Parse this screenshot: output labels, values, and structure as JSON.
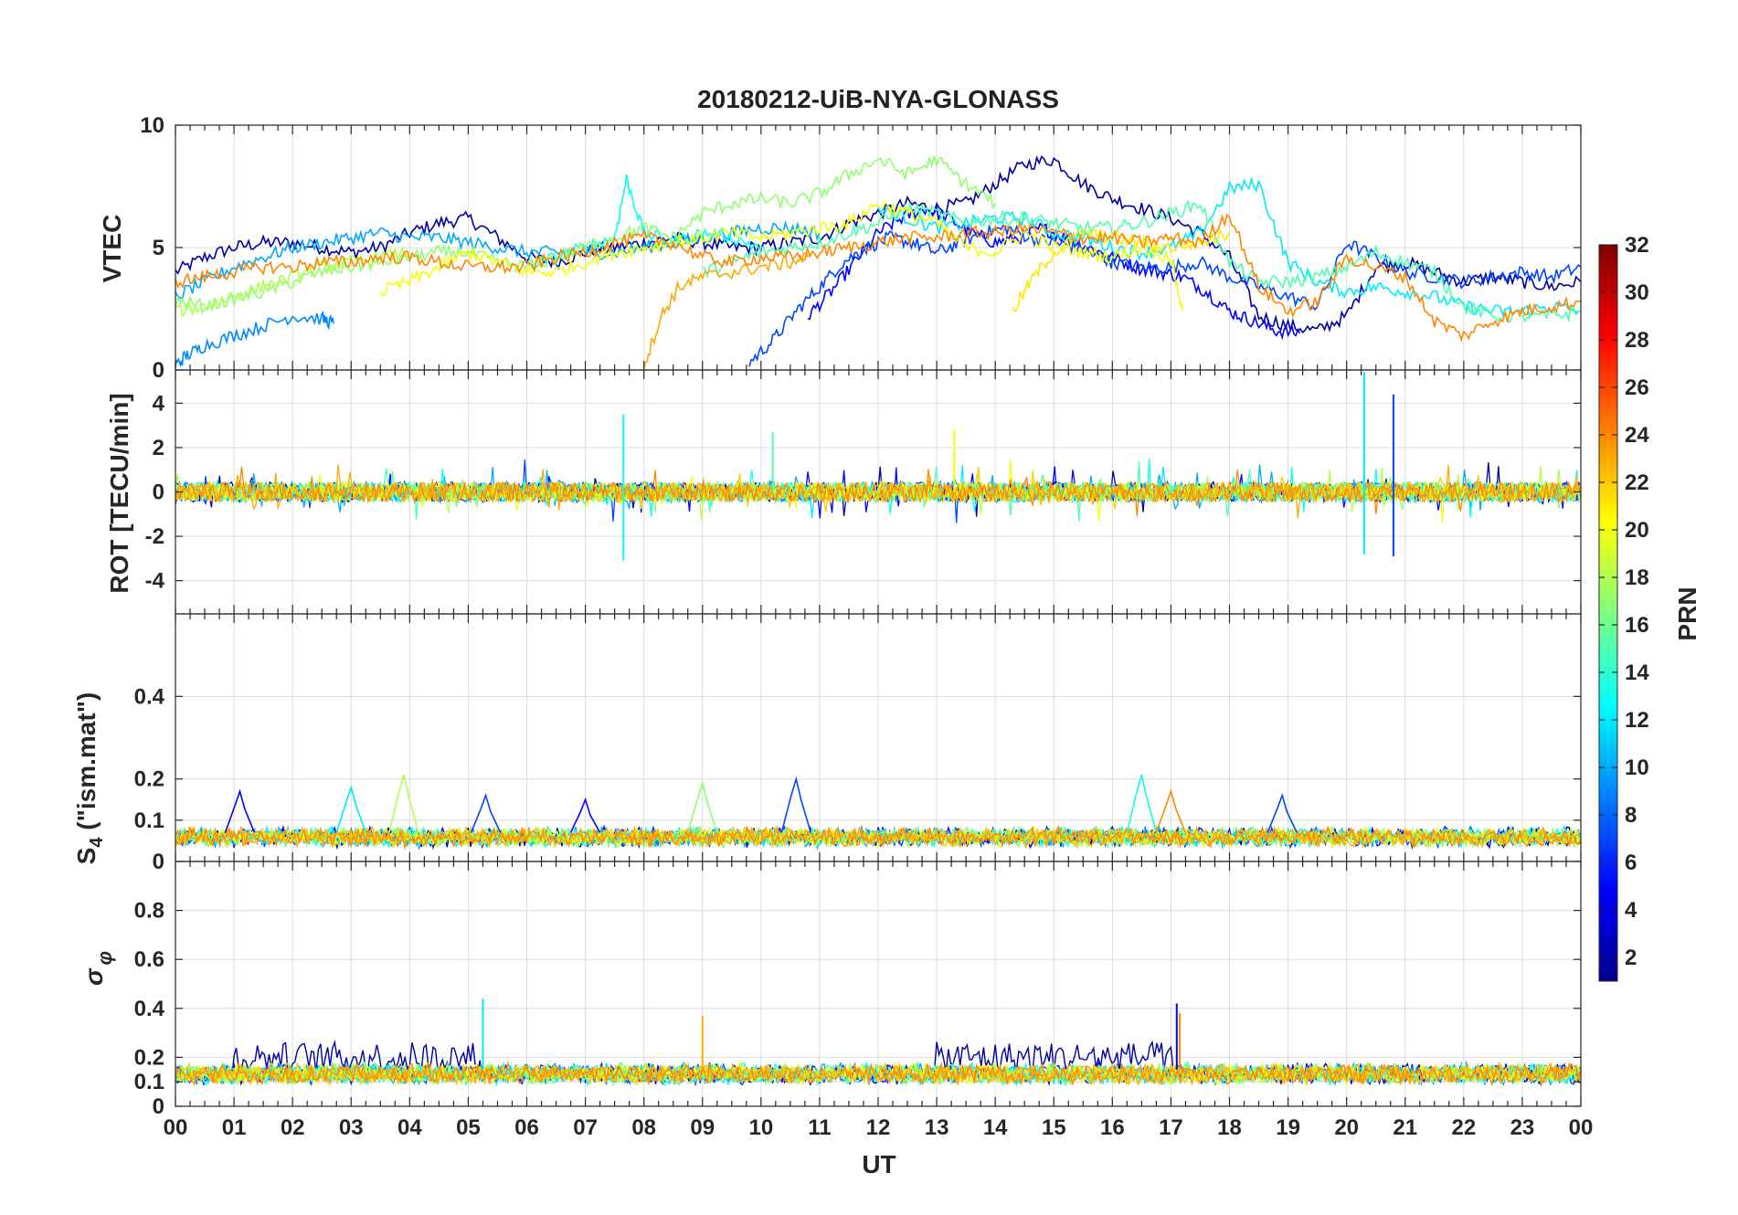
{
  "figure": {
    "title": "20180212-UiB-NYA-GLONASS",
    "xlabel": "UT",
    "x_tick_labels": [
      "00",
      "01",
      "02",
      "03",
      "04",
      "05",
      "06",
      "07",
      "08",
      "09",
      "10",
      "11",
      "12",
      "13",
      "14",
      "15",
      "16",
      "17",
      "18",
      "19",
      "20",
      "21",
      "22",
      "23",
      "00"
    ]
  },
  "colorbar": {
    "label": "PRN",
    "range": [
      1,
      32
    ],
    "tick_labels": [
      "2",
      "4",
      "6",
      "8",
      "10",
      "12",
      "14",
      "16",
      "18",
      "20",
      "22",
      "24",
      "26",
      "28",
      "30",
      "32"
    ],
    "colormap": "jet"
  },
  "chart_data": [
    {
      "type": "line",
      "panel": "vtec",
      "ylabel": "VTEC",
      "xlim": [
        0,
        24
      ],
      "ylim": [
        0,
        10
      ],
      "y_tick_labels": [
        "0",
        "5",
        "10"
      ],
      "series": [
        {
          "prn": 2,
          "x": [
            0,
            0.5,
            1,
            1.5,
            2,
            2.5,
            3,
            3.5,
            4,
            4.5,
            5,
            5.5,
            6,
            6.5,
            7,
            7.5,
            8,
            8.5,
            9,
            9.5,
            10,
            10.5,
            11,
            11.5,
            12,
            12.5,
            13,
            13.5,
            14,
            14.5,
            15,
            15.5,
            16,
            16.5,
            17,
            17.5,
            18,
            18.5,
            19,
            19.5,
            20,
            20.5,
            21,
            21.5,
            22,
            22.5,
            23,
            23.5,
            24
          ],
          "y": [
            4,
            4.6,
            5,
            5.2,
            5.2,
            5,
            4.8,
            5,
            5.6,
            6,
            6.2,
            5.4,
            4.6,
            4.4,
            4.8,
            5,
            5.2,
            5.4,
            5.2,
            5,
            5,
            5.2,
            5.4,
            6,
            6.4,
            6.8,
            6.6,
            6.8,
            7.6,
            8.4,
            8.6,
            7.6,
            7,
            6.6,
            6.2,
            5.6,
            4.6,
            2.2,
            1.8,
            1.6,
            2.2,
            4.2,
            4.4,
            4,
            3.6,
            3.8,
            3.6,
            3.4,
            3.6
          ]
        },
        {
          "prn": 5,
          "x": [
            10.8,
            11.2,
            11.6,
            12,
            12.4,
            12.8,
            13.2,
            13.6,
            14,
            14.4,
            14.8,
            15.2,
            15.6,
            16,
            16.4,
            16.8,
            17.2,
            17.6,
            18,
            18.4,
            18.8,
            19.2
          ],
          "y": [
            2.2,
            3.2,
            4.4,
            5.6,
            6.2,
            6.6,
            6.2,
            5.6,
            5.2,
            5.4,
            5.8,
            5.4,
            5,
            4.6,
            4.2,
            4,
            3.8,
            3.2,
            2.4,
            2,
            1.6,
            1.5
          ]
        },
        {
          "prn": 7,
          "x": [
            9.8,
            10.2,
            10.6,
            11,
            11.4,
            11.8,
            12.2,
            12.6,
            13,
            13.4,
            13.8,
            14.2,
            14.6,
            15,
            15.4,
            15.8,
            16,
            16.5,
            17,
            17.5,
            18,
            18.5,
            19,
            19.5,
            20,
            20.5,
            21,
            21.5,
            22,
            22.5,
            23,
            23.5,
            24
          ],
          "y": [
            0.3,
            1.2,
            2.4,
            3.4,
            4.4,
            5,
            5.4,
            5.2,
            4.8,
            5.2,
            5.6,
            5.8,
            5.4,
            5.2,
            5,
            4.6,
            4.4,
            4.2,
            4.2,
            4.4,
            3.8,
            3.4,
            3,
            2.6,
            5.2,
            4.6,
            4,
            3.8,
            3.6,
            3.8,
            4,
            3.8,
            4.2
          ]
        },
        {
          "prn": 9,
          "x": [
            0,
            0.2,
            0.5,
            1,
            1.5,
            2,
            2.5,
            2.7
          ],
          "y": [
            0.2,
            0.6,
            1,
            1.4,
            1.8,
            2.2,
            2.1,
            1.9
          ]
        },
        {
          "prn": 10,
          "x": [
            0,
            0.5,
            1,
            1.5,
            2,
            2.5,
            3,
            3.5,
            4,
            4.5,
            5,
            5.5,
            6,
            6.5,
            7,
            7.5,
            8,
            8.5,
            9,
            9.5,
            10,
            10.5,
            11
          ],
          "y": [
            3,
            3.6,
            4.2,
            4.6,
            5,
            5.2,
            5.4,
            5.6,
            5.4,
            5.4,
            5.2,
            5,
            4.8,
            4.8,
            4.8,
            4.8,
            5,
            5.2,
            5.4,
            5.6,
            5.8,
            5.8,
            5.6
          ]
        },
        {
          "prn": 12,
          "x": [
            12,
            12.5,
            13,
            13.5,
            14,
            14.5,
            15,
            15.5,
            16,
            16.5,
            17,
            17.5,
            18,
            18.5,
            19,
            19.5,
            20,
            20.5,
            21,
            21.5,
            22,
            22.5,
            23,
            23.5,
            24
          ],
          "y": [
            6.6,
            6.2,
            5.8,
            6,
            6.2,
            6.2,
            5.6,
            5.4,
            5,
            4.8,
            5,
            5.6,
            7.4,
            7.6,
            4.4,
            3.6,
            3.2,
            3.4,
            3.2,
            3,
            2.6,
            2.4,
            2.4,
            2.6,
            2.4
          ]
        },
        {
          "prn": 13,
          "x": [
            6,
            6.5,
            7,
            7.5,
            7.7,
            8,
            8.5,
            9,
            9.5,
            10
          ],
          "y": [
            4.2,
            4.6,
            5,
            5.4,
            7.8,
            5.6,
            5.2,
            5.6,
            5.4,
            5
          ]
        },
        {
          "prn": 15,
          "x": [
            9,
            9.5,
            10,
            10.5,
            11,
            11.5,
            12,
            12.5,
            13,
            13.5,
            14,
            14.5,
            15,
            15.5,
            16,
            16.5,
            17,
            17.5,
            18,
            18.5,
            19,
            19.5,
            20,
            20.5,
            21,
            21.5,
            22,
            22.5,
            23,
            23.5,
            24
          ],
          "y": [
            4,
            4.4,
            4.8,
            5,
            5.2,
            5.6,
            6,
            6.6,
            6.4,
            6,
            6.2,
            6.2,
            6,
            5.8,
            5.8,
            6,
            6.4,
            6.8,
            4.4,
            3.6,
            3.6,
            3.8,
            4.2,
            4.8,
            4.4,
            4,
            2.6,
            2.2,
            2.2,
            2.2,
            2.4
          ]
        },
        {
          "prn": 17,
          "x": [
            0,
            0.5,
            1,
            1.5,
            2,
            2.5,
            3,
            3.5,
            4,
            4.5,
            5,
            5.5,
            6,
            6.5,
            7,
            7.5,
            8,
            8.5,
            9,
            9.5,
            10,
            10.5,
            11,
            11.5,
            12,
            12.5,
            13,
            13.5,
            14
          ],
          "y": [
            2.8,
            2.6,
            2.9,
            3.2,
            3.6,
            4,
            4.2,
            4.4,
            4.6,
            4.8,
            4.8,
            4.4,
            4.2,
            4.6,
            5,
            5.4,
            5.8,
            5.4,
            6.4,
            6.8,
            7,
            6.8,
            7.2,
            8,
            8.6,
            8,
            8.6,
            7.6,
            6.8
          ]
        },
        {
          "prn": 18,
          "x": [
            0,
            0.5,
            1,
            1.5,
            2,
            2.5,
            3,
            3.5,
            4
          ],
          "y": [
            2.4,
            2.6,
            3,
            3.4,
            3.8,
            4.2,
            4.4,
            4.6,
            4.8
          ]
        },
        {
          "prn": 20,
          "x": [
            3.5,
            4,
            4.5,
            5,
            5.5,
            6,
            6.5,
            7,
            7.5,
            8,
            8.5,
            9,
            9.5,
            10,
            10.5,
            11,
            11.5,
            12,
            12.5,
            13,
            13.5,
            14,
            14.5,
            15,
            15.5,
            16,
            16.5,
            17,
            17.2
          ],
          "y": [
            3.2,
            3.6,
            4.2,
            4.8,
            4.4,
            4,
            4,
            4.4,
            4.8,
            5,
            5.2,
            5.4,
            5.6,
            5.4,
            5.6,
            5.8,
            6,
            6.8,
            6.4,
            6,
            5,
            4.8,
            5.6,
            5,
            4.8,
            4.6,
            5,
            4.6,
            2.4
          ]
        },
        {
          "prn": 21,
          "x": [
            14.3,
            14.6,
            15,
            15.5,
            16,
            16.5,
            17,
            17.5,
            18
          ],
          "y": [
            2.4,
            3.6,
            4.8,
            5.6,
            5.4,
            5.2,
            5,
            5.2,
            5.6
          ]
        },
        {
          "prn": 23,
          "x": [
            8,
            8.3,
            8.6,
            9,
            9.5,
            10,
            10.5,
            10.8
          ],
          "y": [
            0.2,
            2.2,
            3.4,
            3.8,
            4,
            4.2,
            4.4,
            4.6
          ]
        },
        {
          "prn": 24,
          "x": [
            0,
            0.5,
            1,
            1.5,
            2,
            2.5,
            3,
            3.5,
            4,
            4.5,
            5,
            5.5,
            6,
            6.5,
            7,
            7.5,
            8,
            8.5,
            9,
            9.5,
            10,
            10.5,
            11,
            11.5,
            12,
            12.5,
            13,
            13.5,
            14,
            14.5,
            15,
            15.5,
            16,
            16.5,
            17,
            17.5,
            18,
            18.5,
            19,
            19.5,
            20,
            20.5,
            21,
            21.5,
            22,
            22.5,
            23,
            23.5,
            24
          ],
          "y": [
            3.6,
            3.8,
            4,
            4.2,
            4.2,
            4.4,
            4.4,
            4.6,
            4.6,
            4.4,
            4.2,
            4.2,
            4.2,
            4.6,
            4.8,
            5.2,
            5.4,
            5.2,
            4.6,
            4.4,
            4.6,
            4.6,
            4.8,
            5,
            5.2,
            5.4,
            5.4,
            5.6,
            5.6,
            5.8,
            5.6,
            5.4,
            5.4,
            5.2,
            5.4,
            5.2,
            6.4,
            3.4,
            2.4,
            2.8,
            4.6,
            4.2,
            3.8,
            2,
            1.4,
            2,
            2.4,
            2.6,
            2.8
          ]
        }
      ]
    },
    {
      "type": "line",
      "panel": "rot",
      "ylabel": "ROT [TECU/min]",
      "xlim": [
        0,
        24
      ],
      "ylim": [
        -5.5,
        5.5
      ],
      "y_tick_labels": [
        "4",
        "2",
        "0",
        "-2",
        "-4"
      ],
      "noise_note": "dense noise traces around 0 for all PRNs",
      "spikes": [
        {
          "prn": 13,
          "x": 7.65,
          "y": 3.5
        },
        {
          "prn": 13,
          "x": 7.65,
          "y": -3.1
        },
        {
          "prn": 15,
          "x": 10.2,
          "y": 2.7
        },
        {
          "prn": 20,
          "x": 13.3,
          "y": 2.8
        },
        {
          "prn": 12,
          "x": 20.3,
          "y": 5.4
        },
        {
          "prn": 12,
          "x": 20.3,
          "y": -2.8
        },
        {
          "prn": 7,
          "x": 20.8,
          "y": 4.4
        },
        {
          "prn": 7,
          "x": 20.8,
          "y": -2.9
        }
      ]
    },
    {
      "type": "line",
      "panel": "s4",
      "ylabel": "S4 (\"ism.mat\")",
      "xlim": [
        0,
        24
      ],
      "ylim": [
        0,
        0.6
      ],
      "y_tick_labels": [
        "0.4",
        "0.2",
        "0.1",
        "0"
      ],
      "baseline_range": [
        0.03,
        0.09
      ],
      "peaks": [
        {
          "prn": 5,
          "x": 1.1,
          "y": 0.17
        },
        {
          "prn": 12,
          "x": 3,
          "y": 0.18
        },
        {
          "prn": 18,
          "x": 3.9,
          "y": 0.21
        },
        {
          "prn": 7,
          "x": 5.3,
          "y": 0.16
        },
        {
          "prn": 5,
          "x": 7,
          "y": 0.15
        },
        {
          "prn": 17,
          "x": 9,
          "y": 0.19
        },
        {
          "prn": 7,
          "x": 10.6,
          "y": 0.2
        },
        {
          "prn": 13,
          "x": 16.5,
          "y": 0.21
        },
        {
          "prn": 24,
          "x": 17,
          "y": 0.17
        },
        {
          "prn": 7,
          "x": 18.9,
          "y": 0.16
        }
      ]
    },
    {
      "type": "line",
      "panel": "sigma_phi",
      "ylabel": "σφ",
      "xlim": [
        0,
        24
      ],
      "ylim": [
        0,
        1
      ],
      "y_tick_labels": [
        "0.8",
        "0.6",
        "0.4",
        "0.2",
        "0.1",
        "0"
      ],
      "baseline_range": [
        0.1,
        0.2
      ],
      "prn2_elevated_ranges": [
        [
          1,
          5.2
        ],
        [
          13,
          17
        ]
      ],
      "peaks": [
        {
          "prn": 12,
          "x": 5.25,
          "y": 0.44
        },
        {
          "prn": 23,
          "x": 9,
          "y": 0.37
        },
        {
          "prn": 5,
          "x": 17.1,
          "y": 0.42
        },
        {
          "prn": 24,
          "x": 17.15,
          "y": 0.38
        }
      ]
    }
  ]
}
